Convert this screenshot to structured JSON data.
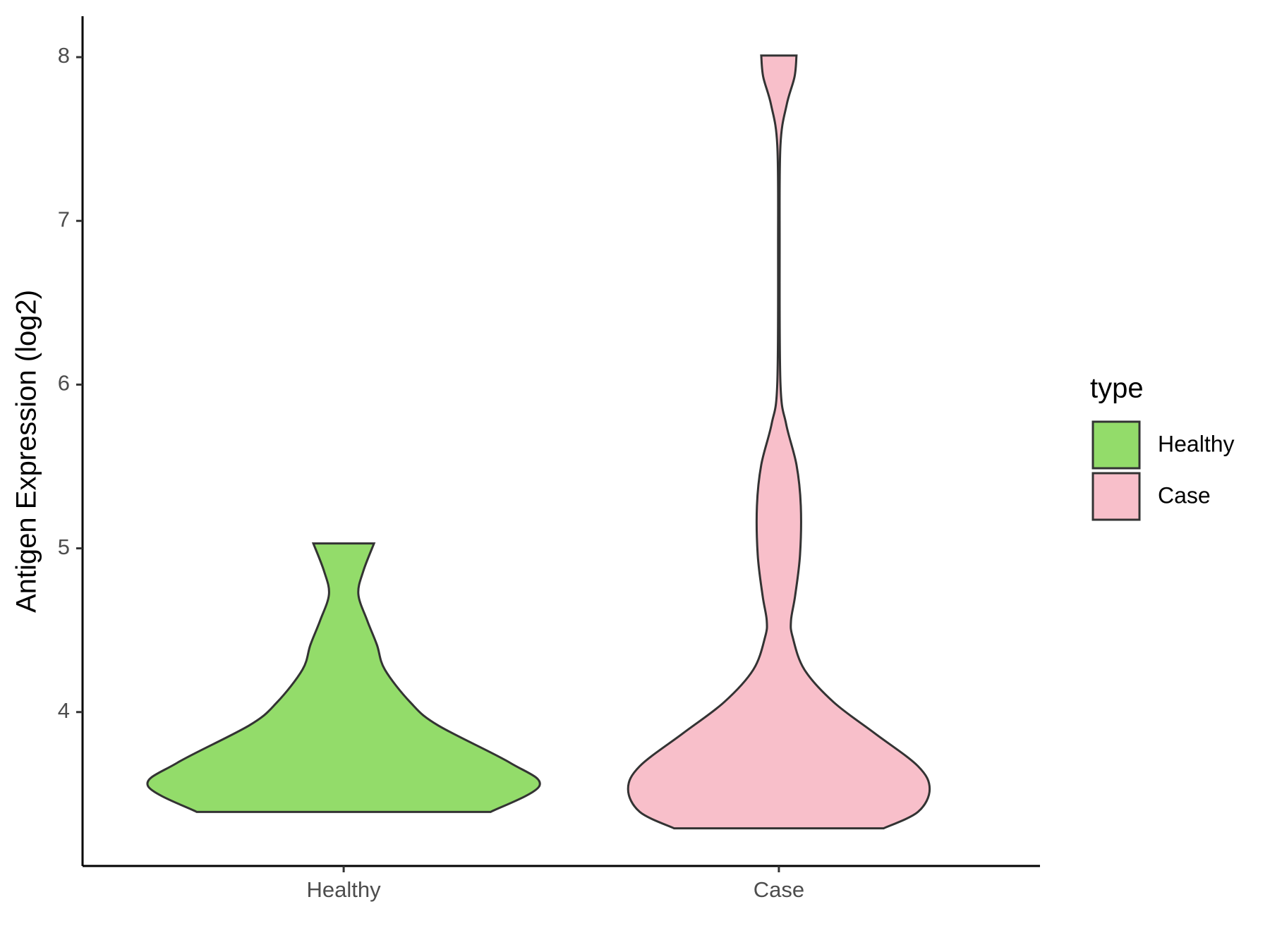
{
  "chart_data": {
    "type": "violin",
    "y_label": "Antigen Expression (log2)",
    "categories": [
      "Healthy",
      "Case"
    ],
    "legend_title": "type",
    "legend": "right",
    "ylim": [
      3.06,
      8.25
    ],
    "yticks": [
      4,
      5,
      6,
      7,
      8
    ],
    "series": [
      {
        "name": "Healthy",
        "color": "#93dc6a",
        "y": [
          3.39,
          3.55,
          3.69,
          3.92,
          4.06,
          4.26,
          4.41,
          4.56,
          4.72,
          4.86,
          5.03
        ],
        "width": [
          0.75,
          1.0,
          0.85,
          0.48,
          0.34,
          0.21,
          0.17,
          0.12,
          0.075,
          0.1,
          0.155
        ]
      },
      {
        "name": "Case",
        "color": "#f8bfca",
        "y": [
          3.29,
          3.39,
          3.53,
          3.67,
          3.87,
          4.06,
          4.26,
          4.46,
          4.56,
          4.71,
          4.96,
          5.26,
          5.51,
          5.76,
          6.01,
          6.86,
          7.46,
          7.71,
          7.88,
          8.01
        ],
        "width": [
          0.535,
          0.71,
          0.77,
          0.71,
          0.49,
          0.28,
          0.13,
          0.07,
          0.062,
          0.083,
          0.108,
          0.112,
          0.09,
          0.037,
          0.008,
          0.004,
          0.008,
          0.04,
          0.08,
          0.09
        ]
      }
    ]
  }
}
